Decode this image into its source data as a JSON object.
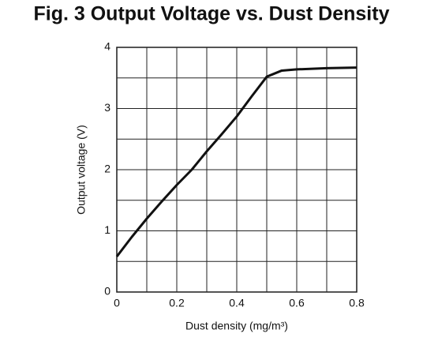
{
  "chart_data": {
    "type": "line",
    "title": "Fig. 3  Output Voltage vs. Dust Density",
    "x_label": "Dust density (mg/m³)",
    "y_label": "Output voltage (V)",
    "x": [
      0,
      0.05,
      0.1,
      0.15,
      0.2,
      0.25,
      0.3,
      0.35,
      0.4,
      0.45,
      0.5,
      0.55,
      0.6,
      0.7,
      0.8
    ],
    "series": [
      {
        "name": "Output voltage",
        "color": "#111111",
        "values": [
          0.58,
          0.9,
          1.2,
          1.48,
          1.75,
          2.0,
          2.3,
          2.58,
          2.87,
          3.2,
          3.52,
          3.62,
          3.64,
          3.66,
          3.67
        ]
      }
    ],
    "xlim": [
      0,
      0.8
    ],
    "ylim": [
      0,
      4
    ],
    "xticks": [
      0,
      0.2,
      0.4,
      0.6,
      0.8
    ],
    "yticks": [
      0,
      1,
      2,
      3,
      4
    ],
    "xminor": [
      0.1,
      0.3,
      0.5,
      0.7
    ],
    "yminor": [
      0.5,
      1.5,
      2.5,
      3.5
    ],
    "grid": true
  }
}
